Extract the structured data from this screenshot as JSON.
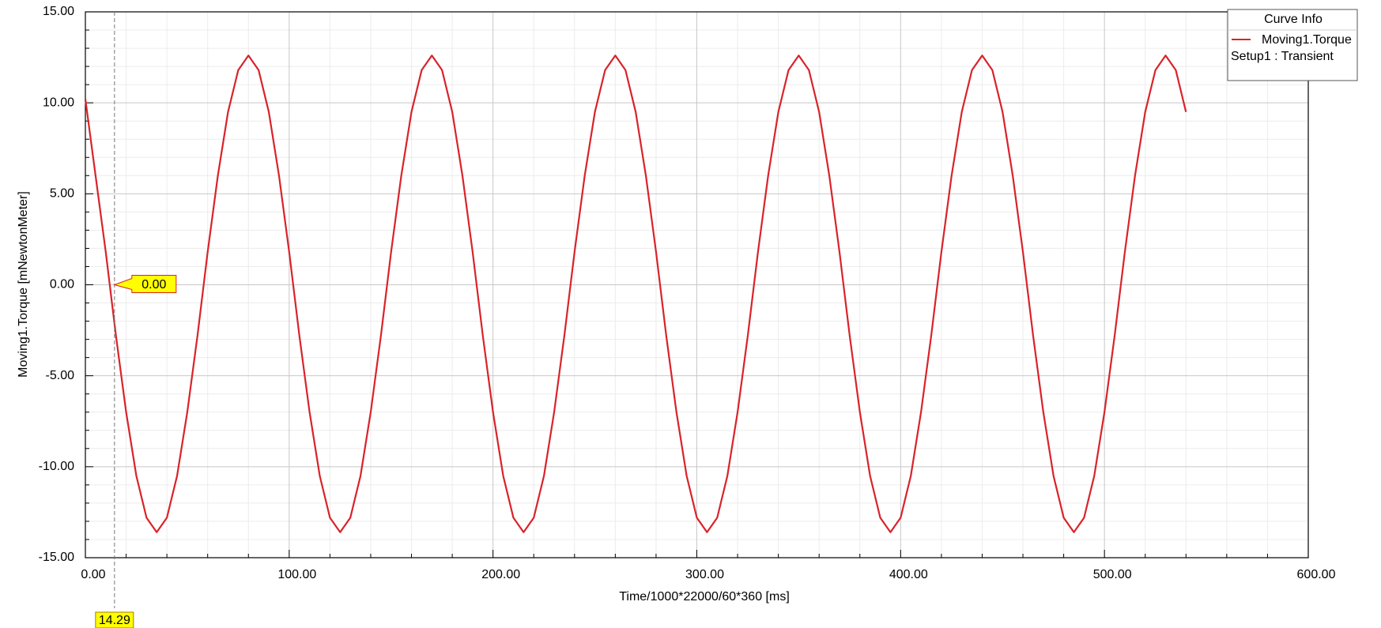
{
  "chart_data": {
    "type": "line",
    "xlabel": "Time/1000*22000/60*360 [ms]",
    "ylabel": "Moving1.Torque [mNewtonMeter]",
    "legend_title": "Curve Info",
    "legend_subtitle": "Setup1 : Transient",
    "legend_position": "upper right",
    "grid": true,
    "xlim": [
      0,
      600
    ],
    "ylim": [
      -15,
      15
    ],
    "xticks": [
      {
        "value": 0,
        "label": "0.00"
      },
      {
        "value": 100,
        "label": "100.00"
      },
      {
        "value": 200,
        "label": "200.00"
      },
      {
        "value": 300,
        "label": "300.00"
      },
      {
        "value": 400,
        "label": "400.00"
      },
      {
        "value": 500,
        "label": "500.00"
      },
      {
        "value": 600,
        "label": "600.00"
      }
    ],
    "yticks": [
      {
        "value": -15,
        "label": "-15.00"
      },
      {
        "value": -10,
        "label": "-10.00"
      },
      {
        "value": -5,
        "label": "-5.00"
      },
      {
        "value": 0,
        "label": "0.00"
      },
      {
        "value": 5,
        "label": "5.00"
      },
      {
        "value": 10,
        "label": "10.00"
      },
      {
        "value": 15,
        "label": "15.00"
      }
    ],
    "marker": {
      "x": {
        "value": 14.29,
        "label": "14.29"
      },
      "y": {
        "value": 0,
        "label": "0.00"
      }
    },
    "x": [
      0,
      5,
      10,
      15,
      20,
      25,
      30,
      35,
      40,
      45,
      50,
      55,
      60,
      65,
      70,
      75,
      80,
      85,
      90,
      95,
      100,
      105,
      110,
      115,
      120,
      125,
      130,
      135,
      140,
      145,
      150,
      155,
      160,
      165,
      170,
      175,
      180,
      185,
      190,
      195,
      200,
      205,
      210,
      215,
      220,
      225,
      230,
      235,
      240,
      245,
      250,
      255,
      260,
      265,
      270,
      275,
      280,
      285,
      290,
      295,
      300,
      305,
      310,
      315,
      320,
      325,
      330,
      335,
      340,
      345,
      350,
      355,
      360,
      365,
      370,
      375,
      380,
      385,
      390,
      395,
      400,
      405,
      410,
      415,
      420,
      425,
      430,
      435,
      440,
      445,
      450,
      455,
      460,
      465,
      470,
      475,
      480,
      485,
      490,
      495,
      500,
      505,
      510,
      515,
      520,
      525,
      530,
      535,
      540
    ],
    "series": [
      {
        "name": "Moving1.Torque",
        "color": "#d9232a",
        "values": [
          10.2,
          6.0,
          1.8,
          -2.8,
          -7.0,
          -10.5,
          -12.8,
          -13.6,
          -12.8,
          -10.5,
          -7.0,
          -2.8,
          1.8,
          6.0,
          9.5,
          11.8,
          12.6,
          11.8,
          9.5,
          6.0,
          1.8,
          -2.8,
          -7.0,
          -10.5,
          -12.8,
          -13.6,
          -12.8,
          -10.5,
          -7.0,
          -2.8,
          1.8,
          6.0,
          9.5,
          11.8,
          12.6,
          11.8,
          9.5,
          6.0,
          1.8,
          -2.8,
          -7.0,
          -10.5,
          -12.8,
          -13.6,
          -12.8,
          -10.5,
          -7.0,
          -2.8,
          1.8,
          6.0,
          9.5,
          11.8,
          12.6,
          11.8,
          9.5,
          6.0,
          1.8,
          -2.8,
          -7.0,
          -10.5,
          -12.8,
          -13.6,
          -12.8,
          -10.5,
          -7.0,
          -2.8,
          1.8,
          6.0,
          9.5,
          11.8,
          12.6,
          11.8,
          9.5,
          6.0,
          1.8,
          -2.8,
          -7.0,
          -10.5,
          -12.8,
          -13.6,
          -12.8,
          -10.5,
          -7.0,
          -2.8,
          1.8,
          6.0,
          9.5,
          11.8,
          12.6,
          11.8,
          9.5,
          6.0,
          1.8,
          -2.8,
          -7.0,
          -10.5,
          -12.8,
          -13.6,
          -12.8,
          -10.5,
          -7.0,
          -2.8,
          1.8,
          6.0,
          9.5,
          11.8,
          12.6,
          11.8,
          9.5
        ]
      }
    ]
  }
}
